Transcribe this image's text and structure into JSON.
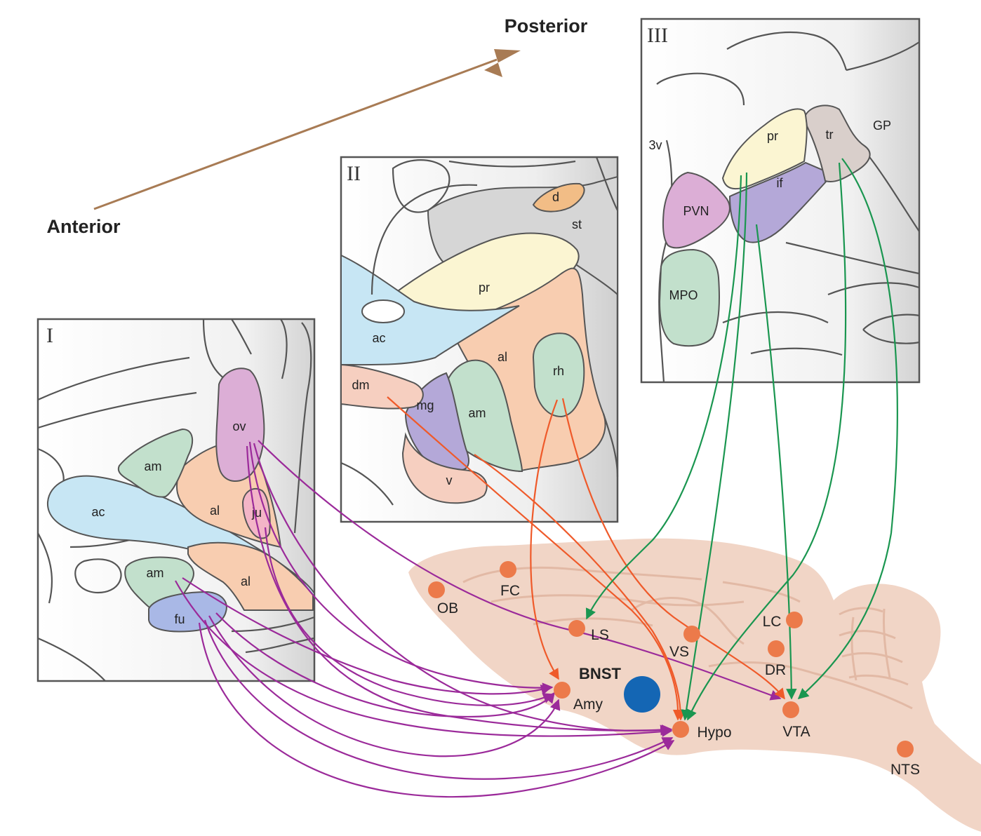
{
  "axis": {
    "anterior_label": "Anterior",
    "posterior_label": "Posterior",
    "arrow_color": "#a87b54"
  },
  "colors": {
    "purple_projection": "#9b2a9a",
    "orange_projection": "#ef5a2a",
    "green_projection": "#1a9650",
    "target_dot": "#ec7a4a",
    "bnst_dot": "#1466b4",
    "brain": "#f1d5c6"
  },
  "panel1": {
    "roman": "I",
    "labels": {
      "ov": "ov",
      "am_top": "am",
      "ac": "ac",
      "al_mid": "al",
      "ju": "ju",
      "am_bottom": "am",
      "al_bottom": "al",
      "fu": "fu"
    }
  },
  "panel2": {
    "roman": "II",
    "labels": {
      "d": "d",
      "st": "st",
      "pr": "pr",
      "ac": "ac",
      "al": "al",
      "rh": "rh",
      "dm": "dm",
      "mg": "mg",
      "am": "am",
      "v": "v"
    }
  },
  "panel3": {
    "roman": "III",
    "labels": {
      "3v": "3v",
      "pr": "pr",
      "tr": "tr",
      "gp": "GP",
      "if": "if",
      "pvn": "PVN",
      "mpo": "MPO"
    }
  },
  "brain": {
    "bnst_label": "BNST",
    "targets": {
      "ob": "OB",
      "fc": "FC",
      "ls": "LS",
      "vs": "VS",
      "lc": "LC",
      "dr": "DR",
      "amy": "Amy",
      "hypo": "Hypo",
      "vta": "VTA",
      "nts": "NTS"
    }
  }
}
